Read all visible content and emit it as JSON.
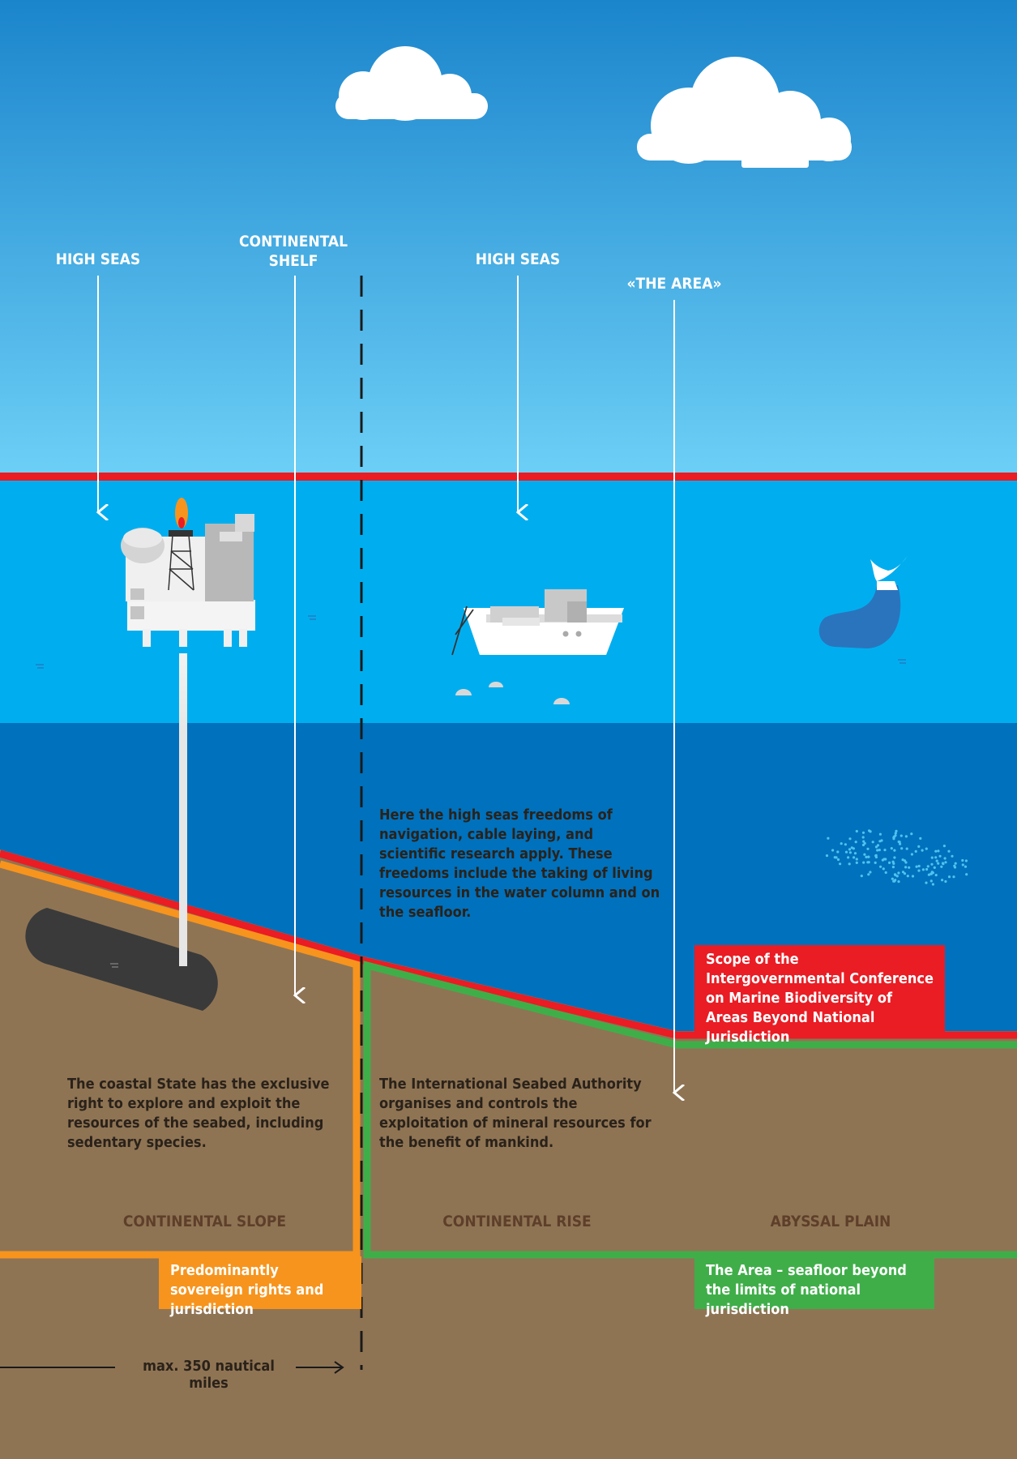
{
  "colors": {
    "sky_top": "#1b85cc",
    "sky_bottom": "#6ccff6",
    "sea_surface": "#00aeef",
    "deep_sea": "#0071bc",
    "seabed": "#8f7454",
    "red_line": "#ea1c24",
    "orange_line": "#f7941d",
    "green_line": "#3fae49"
  },
  "labels": {
    "high_seas_left": "HIGH SEAS",
    "continental_shelf": "CONTINENTAL\nSHELF",
    "high_seas_right": "HIGH SEAS",
    "the_area": "«THE AREA»"
  },
  "texts": {
    "high_seas_freedoms": "Here the high seas freedoms of navigation, cable laying, and scientific research apply. These freedoms include the taking of living resources in the water column and on the seafloor.",
    "coastal_state": "The coastal State has the exclusive right to explore and exploit the resources of the seabed, including sedentary species.",
    "isa": "The International Seabed Authority organises and controls the exploitation of mineral resources for the benefit of mankind."
  },
  "zones": {
    "slope": "CONTINENTAL SLOPE",
    "rise": "CONTINENTAL RISE",
    "plain": "ABYSSAL PLAIN"
  },
  "legend_boxes": {
    "igc_scope": "Scope of the Intergovernmental Conference on Marine Biodiversity of Areas Beyond National Jurisdiction",
    "sovereign": "Predominantly sovereign rights and jurisdiction",
    "the_area": "The Area – seafloor beyond the limits of national jurisdiction"
  },
  "distance": "max. 350 nautical miles",
  "icons": [
    "cloud-icon",
    "oil-platform-icon",
    "research-ship-icon",
    "whale-icon",
    "fish-school-icon",
    "oil-reservoir-icon"
  ]
}
